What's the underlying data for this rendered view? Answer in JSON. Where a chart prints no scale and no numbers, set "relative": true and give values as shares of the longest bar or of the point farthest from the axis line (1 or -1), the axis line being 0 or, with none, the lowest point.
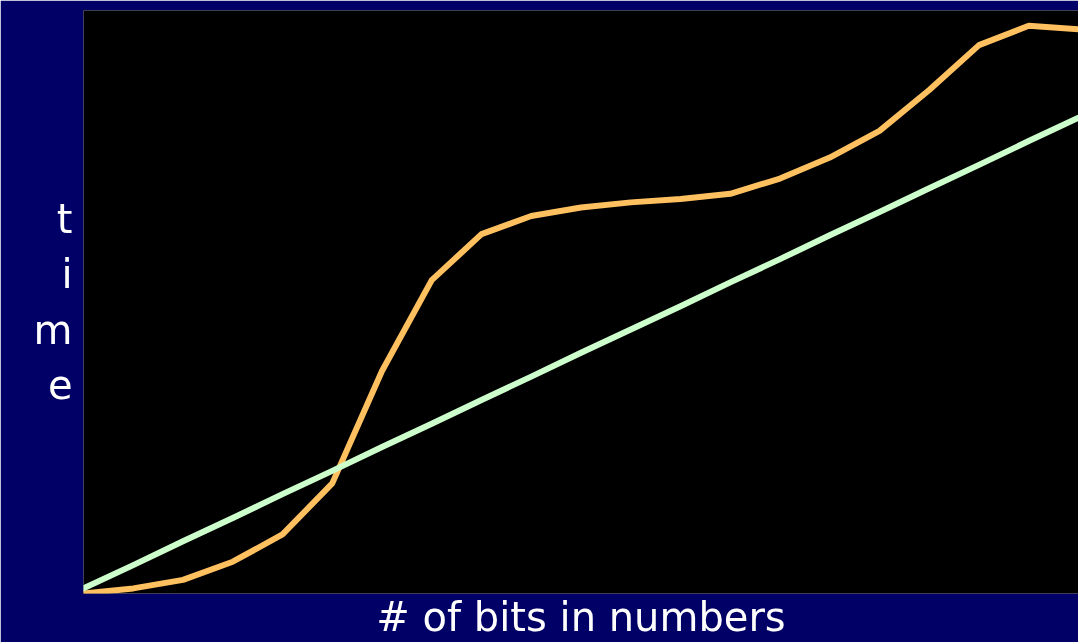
{
  "chart_data": {
    "type": "line",
    "relative": true,
    "xlabel": "# of bits in numbers",
    "ylabel": "time",
    "categories": [
      null,
      null,
      null,
      null,
      null,
      null,
      null,
      null,
      null,
      null,
      null,
      null,
      null,
      null,
      null,
      null,
      null,
      null,
      null,
      null,
      null
    ],
    "series": [
      {
        "color": "#ffc060",
        "values": [
          0,
          0.009,
          0.024,
          0.056,
          0.104,
          0.194,
          0.392,
          0.552,
          0.633,
          0.665,
          0.68,
          0.689,
          0.695,
          0.704,
          0.731,
          0.768,
          0.815,
          0.887,
          0.966,
          1.0,
          0.994
        ]
      },
      {
        "color": "#ccffcc",
        "values": [
          0.009,
          0.05,
          0.092,
          0.133,
          0.175,
          0.216,
          0.258,
          0.299,
          0.341,
          0.382,
          0.424,
          0.465,
          0.506,
          0.548,
          0.589,
          0.631,
          0.672,
          0.714,
          0.755,
          0.797,
          0.838
        ]
      }
    ],
    "grid": false,
    "marker": "none",
    "line_style": "solid"
  }
}
